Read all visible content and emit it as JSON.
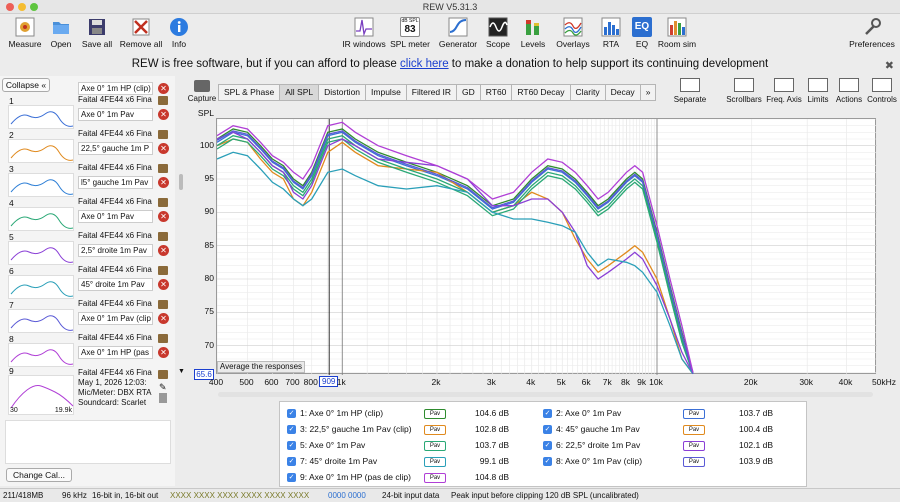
{
  "window": {
    "title": "REW V5.31.3"
  },
  "toolbar": {
    "left": [
      {
        "label": "Measure",
        "icon": "measure-icon"
      },
      {
        "label": "Open",
        "icon": "folder-icon"
      },
      {
        "label": "Save all",
        "icon": "save-icon"
      },
      {
        "label": "Remove all",
        "icon": "remove-all-icon"
      },
      {
        "label": "Info",
        "icon": "info-icon"
      }
    ],
    "center": [
      {
        "label": "IR windows",
        "icon": "ir-windows-icon"
      },
      {
        "label": "SPL meter",
        "icon": "spl-meter-icon",
        "badge_top": "dB SPL",
        "badge_value": "83"
      },
      {
        "label": "Generator",
        "icon": "generator-icon"
      },
      {
        "label": "Scope",
        "icon": "scope-icon"
      },
      {
        "label": "Levels",
        "icon": "levels-icon"
      },
      {
        "label": "Overlays",
        "icon": "overlays-icon"
      },
      {
        "label": "RTA",
        "icon": "rta-icon"
      },
      {
        "label": "EQ",
        "icon": "eq-icon",
        "badge_value": "EQ"
      },
      {
        "label": "Room sim",
        "icon": "room-sim-icon"
      }
    ],
    "right": {
      "label": "Preferences",
      "icon": "preferences-icon"
    }
  },
  "banner": {
    "text_before": "REW is free software, but if you can afford to please ",
    "link": "click here",
    "text_after": " to make a donation to help support its continuing development"
  },
  "left_panel": {
    "collapse_label": "Collapse",
    "change_cal_label": "Change Cal...",
    "measurements": [
      {
        "num": "",
        "desc": "",
        "name": "Axe 0° 1m HP (clip)",
        "color": "#2e8b2e"
      },
      {
        "num": "1",
        "desc": "Faital 4FE44 x6 Fina",
        "name": "Axe 0° 1m Pav",
        "color": "#3b6fd6"
      },
      {
        "num": "2",
        "desc": "Faital 4FE44 x6 Fina",
        "name": "22,5° gauche 1m P",
        "color": "#e08a1e"
      },
      {
        "num": "3",
        "desc": "Faital 4FE44 x6 Fina",
        "name": "l5° gauche 1m Pav",
        "color": "#2e7fd6"
      },
      {
        "num": "4",
        "desc": "Faital 4FE44 x6 Fina",
        "name": "Axe 0° 1m Pav",
        "color": "#2aa876"
      },
      {
        "num": "5",
        "desc": "Faital 4FE44 x6 Fina",
        "name": "2,5° droite 1m Pav",
        "color": "#8a3fd6"
      },
      {
        "num": "6",
        "desc": "Faital 4FE44 x6 Fina",
        "name": "45° droite 1m Pav",
        "color": "#2a9fb8"
      },
      {
        "num": "7",
        "desc": "Faital 4FE44 x6 Fina",
        "name": "Axe 0° 1m Pav (clip",
        "color": "#5a5ad6"
      },
      {
        "num": "8",
        "desc": "Faital 4FE44 x6 Fina",
        "name": "Axe 0° 1m HP (pas",
        "color": "#b03fd6"
      }
    ],
    "selected": {
      "num": "9",
      "lines": [
        "Faital 4FE44 x6 Fina",
        "May 1, 2026 12:03:",
        "Mic/Meter: DBX RTA",
        "Soundcard: Scarlet"
      ],
      "thumb_left": "30",
      "thumb_right": "19.9k",
      "color": "#b03fd6"
    }
  },
  "graph": {
    "capture_label": "Capture",
    "tabs": [
      "SPL & Phase",
      "All SPL",
      "Distortion",
      "Impulse",
      "Filtered IR",
      "GD",
      "RT60",
      "RT60 Decay",
      "Clarity",
      "Decay",
      "»"
    ],
    "active_tab": "All SPL",
    "right_tools": [
      "Separate",
      "Scrollbars",
      "Freq. Axis",
      "Limits",
      "Actions",
      "Controls"
    ],
    "y_axis_label": "SPL",
    "average_label": "Average the responses",
    "cursor_y": "65.6",
    "cursor_x": "909"
  },
  "chart_data": {
    "type": "line",
    "xscale": "log",
    "xlim": [
      400,
      50000
    ],
    "ylim": [
      65.6,
      104
    ],
    "ylabel": "SPL",
    "y_ticks": [
      "100",
      "95",
      "90",
      "85",
      "80",
      "75",
      "70"
    ],
    "x_ticks": [
      "400",
      "500",
      "600",
      "700",
      "800",
      "909",
      "1k",
      "2k",
      "3k",
      "4k",
      "5k",
      "6k",
      "7k",
      "8k",
      "9k",
      "10k",
      "20k",
      "30k",
      "40k",
      "50kHz"
    ],
    "x": [
      400,
      450,
      500,
      550,
      600,
      650,
      700,
      750,
      800,
      900,
      1000,
      1100,
      1300,
      1600,
      2000,
      2500,
      3000,
      3500,
      4000,
      4500,
      5000,
      5500,
      6000,
      6500,
      7000,
      8000,
      8500,
      9000,
      10000,
      11000,
      12000,
      13000
    ],
    "series": [
      {
        "name": "1: Axe 0° 1m HP (clip)",
        "color": "#2e8b2e",
        "values": [
          101,
          102.5,
          102,
          100,
          98,
          97,
          95,
          94,
          96,
          102,
          102.5,
          101,
          99,
          97.5,
          96,
          94,
          91,
          92,
          95,
          97,
          96.5,
          95,
          93,
          91,
          92,
          95,
          96,
          95,
          87,
          79,
          72,
          66
        ]
      },
      {
        "name": "2: Axe 0° 1m Pav",
        "color": "#3b6fd6",
        "values": [
          100.5,
          102,
          101.5,
          99.5,
          97.5,
          96.5,
          94.5,
          93.5,
          95.5,
          101.5,
          102,
          100.5,
          98.5,
          97,
          95.5,
          93.5,
          90.5,
          91.5,
          94.5,
          96.5,
          96,
          94.5,
          92.5,
          90.5,
          91.5,
          94.5,
          95.5,
          94.5,
          86.5,
          78.5,
          71.5,
          65.8
        ]
      },
      {
        "name": "3: 22,5° gauche 1m Pav (clip)",
        "color": "#e08a1e",
        "values": [
          100,
          101,
          100.5,
          98,
          96,
          95,
          92,
          91,
          93,
          99,
          100.5,
          99,
          97,
          96.5,
          96,
          93,
          90,
          91,
          93,
          92,
          90,
          86,
          83,
          81,
          82,
          84,
          85,
          84,
          80,
          74,
          68,
          65.8
        ]
      },
      {
        "name": "4: 45° gauche 1m Pav",
        "color": "#2aa876",
        "values": [
          99.5,
          101,
          100.5,
          98.5,
          96.5,
          95.5,
          93.5,
          92.5,
          94.5,
          100.5,
          101,
          99.5,
          97.5,
          96,
          94.5,
          92.5,
          89.5,
          90.5,
          93.5,
          95.5,
          95,
          93.5,
          91.5,
          89.5,
          90.5,
          93.5,
          94.5,
          93.5,
          85.5,
          77.5,
          70.5,
          65.8
        ]
      },
      {
        "name": "5: Axe 0° 1m Pav",
        "color": "#2aa876",
        "values": [
          100,
          101.5,
          101,
          99,
          97,
          96,
          94,
          93,
          95,
          101,
          101.5,
          100,
          98,
          96.5,
          95,
          93,
          90,
          91,
          94,
          96,
          95.5,
          94,
          92,
          90,
          91,
          94,
          95,
          94,
          86,
          78,
          71,
          65.8
        ]
      },
      {
        "name": "6: 22,5° droite 1m Pav",
        "color": "#8a3fd6",
        "values": [
          101,
          102,
          101,
          99,
          97,
          96,
          93,
          92,
          94,
          100,
          101,
          100,
          98,
          97.5,
          97,
          95,
          91,
          91,
          92,
          92,
          90,
          87,
          82,
          80,
          81,
          83,
          84,
          83,
          79,
          74,
          69,
          65.8
        ]
      },
      {
        "name": "7: 45° droite 1m Pav",
        "color": "#2a9fb8",
        "values": [
          98,
          99,
          98.5,
          96.5,
          94.5,
          93.5,
          92,
          91,
          92,
          96,
          96.5,
          95.5,
          94,
          93.5,
          94,
          93,
          90,
          89,
          89,
          88.5,
          88,
          87,
          84,
          82,
          83,
          82.5,
          82,
          81,
          78,
          73,
          68,
          65.8
        ]
      },
      {
        "name": "8: Axe 0° 1m Pav (clip)",
        "color": "#5a5ad6",
        "values": [
          100.8,
          102.2,
          101.7,
          99.7,
          97.7,
          96.7,
          94.7,
          93.7,
          95.7,
          101.7,
          102.2,
          100.7,
          98.7,
          97.2,
          95.7,
          93.7,
          90.7,
          91.7,
          94.7,
          96.7,
          96.2,
          94.7,
          92.7,
          90.7,
          91.7,
          94.7,
          95.7,
          94.7,
          86.7,
          78.7,
          71.7,
          65.8
        ]
      },
      {
        "name": "9: Axe 0° 1m HP (pas de clip)",
        "color": "#b03fd6",
        "values": [
          101.5,
          103,
          102.5,
          100.5,
          98.5,
          97.5,
          96,
          95,
          97,
          103,
          103.5,
          102,
          100,
          98.5,
          97,
          95,
          92,
          93,
          96,
          98,
          97.5,
          96,
          94,
          92,
          93,
          96,
          97,
          96,
          88,
          80,
          73,
          66
        ]
      }
    ]
  },
  "legend": [
    {
      "label": "1: Axe 0° 1m HP (clip)",
      "value": "104.6 dB",
      "color": "#2e8b2e"
    },
    {
      "label": "2: Axe 0° 1m Pav",
      "value": "103.7 dB",
      "color": "#3b6fd6"
    },
    {
      "label": "3: 22,5° gauche 1m Pav (clip)",
      "value": "102.8 dB",
      "color": "#e08a1e"
    },
    {
      "label": "4: 45° gauche 1m Pav",
      "value": "100.4 dB",
      "color": "#e08a1e"
    },
    {
      "label": "5: Axe 0° 1m Pav",
      "value": "103.7 dB",
      "color": "#2aa876"
    },
    {
      "label": "6: 22,5° droite 1m Pav",
      "value": "102.1 dB",
      "color": "#8a3fd6"
    },
    {
      "label": "7: 45° droite 1m Pav",
      "value": "99.1 dB",
      "color": "#2a9fb8"
    },
    {
      "label": "8: Axe 0° 1m Pav (clip)",
      "value": "103.9 dB",
      "color": "#5a5ad6"
    },
    {
      "label": "9: Axe 0° 1m HP (pas de clip)",
      "value": "104.8 dB",
      "color": "#b03fd6"
    }
  ],
  "legend_swatch_text": "Pav",
  "status": {
    "memory": "211/418MB",
    "rate": "96 kHz",
    "bits": "16-bit in, 16-bit out",
    "in_levels": "XXXX XXXX   XXXX XXXX   XXXX XXXX",
    "out_levels": "0000 0000",
    "input": "24-bit input data",
    "peak": "Peak input before clipping 120 dB SPL (uncalibrated)"
  }
}
